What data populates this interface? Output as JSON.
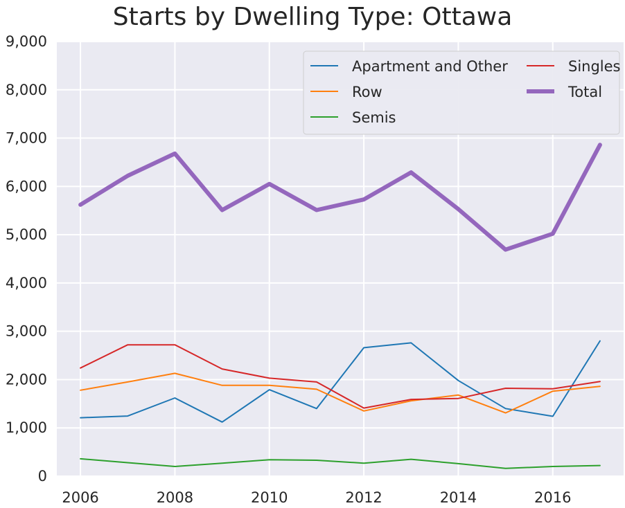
{
  "chart_data": {
    "type": "line",
    "title": "Starts by Dwelling Type: Ottawa",
    "xlabel": "",
    "ylabel": "",
    "x": [
      2006,
      2007,
      2008,
      2009,
      2010,
      2011,
      2012,
      2013,
      2014,
      2015,
      2016,
      2017
    ],
    "xlim": [
      2005.5,
      2017.5
    ],
    "ylim": [
      0,
      9000
    ],
    "x_ticks": [
      2006,
      2008,
      2010,
      2012,
      2014,
      2016
    ],
    "x_tick_labels": [
      "2006",
      "2008",
      "2010",
      "2012",
      "2014",
      "2016"
    ],
    "y_ticks": [
      0,
      1000,
      2000,
      3000,
      4000,
      5000,
      6000,
      7000,
      8000,
      9000
    ],
    "y_tick_labels": [
      "0",
      "1,000",
      "2,000",
      "3,000",
      "4,000",
      "5,000",
      "6,000",
      "7,000",
      "8,000",
      "9,000"
    ],
    "grid": true,
    "legend_position": "top-right",
    "series": [
      {
        "name": "Apartment and Other",
        "color": "#1f77b4",
        "width": 2,
        "values": [
          1210,
          1245,
          1620,
          1120,
          1790,
          1400,
          2660,
          2760,
          1980,
          1400,
          1240,
          2800
        ]
      },
      {
        "name": "Row",
        "color": "#ff7f0e",
        "width": 2,
        "values": [
          1780,
          1950,
          2130,
          1880,
          1880,
          1800,
          1350,
          1560,
          1680,
          1310,
          1760,
          1860
        ]
      },
      {
        "name": "Semis",
        "color": "#2ca02c",
        "width": 2,
        "values": [
          360,
          280,
          200,
          270,
          340,
          330,
          270,
          350,
          260,
          160,
          200,
          220
        ]
      },
      {
        "name": "Singles",
        "color": "#d62728",
        "width": 2,
        "values": [
          2240,
          2720,
          2720,
          2220,
          2030,
          1950,
          1410,
          1590,
          1610,
          1820,
          1810,
          1960
        ]
      },
      {
        "name": "Total",
        "color": "#9467bd",
        "width": 6,
        "values": [
          5620,
          6220,
          6680,
          5510,
          6050,
          5510,
          5730,
          6290,
          5530,
          4690,
          5020,
          6860
        ]
      }
    ]
  }
}
